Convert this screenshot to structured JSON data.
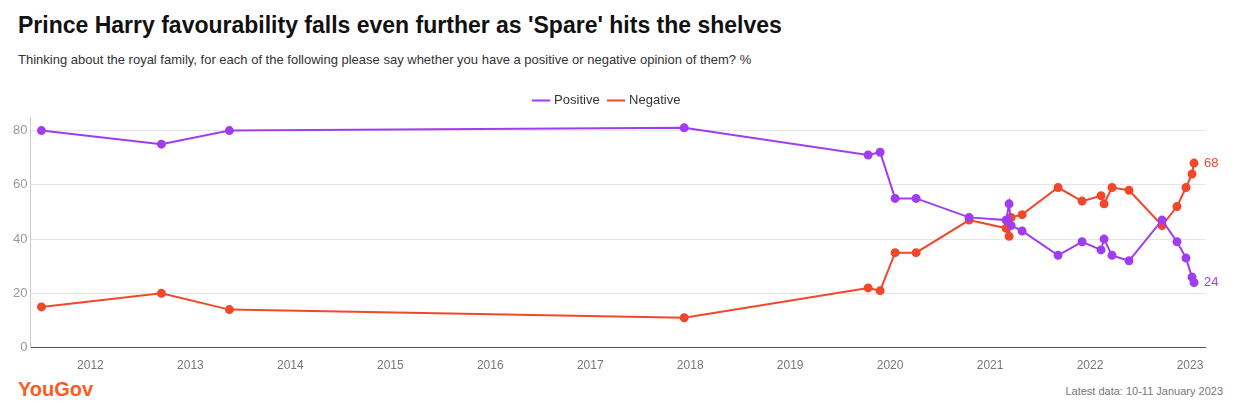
{
  "chart_data": {
    "type": "line",
    "title": "Prince Harry favourability falls even further as 'Spare' hits the shelves",
    "subtitle": "Thinking about the royal family, for each of the following please say whether you have a positive or negative opinion of them? %",
    "source": "YouGov",
    "note": "Latest data: 10-11 January 2023",
    "x": [
      2011.51,
      2012.71,
      2013.39,
      2017.94,
      2019.78,
      2019.9,
      2020.05,
      2020.26,
      2020.79,
      2021.16,
      2021.19,
      2021.21,
      2021.32,
      2021.68,
      2021.92,
      2022.11,
      2022.14,
      2022.22,
      2022.39,
      2022.72,
      2022.87,
      2022.96,
      2023.02,
      2023.04
    ],
    "series": [
      {
        "name": "Positive",
        "color": "#a13df0",
        "marker": "circle",
        "line_style": "solid",
        "values": [
          80,
          75,
          80,
          81,
          71,
          72,
          55,
          55,
          48,
          47,
          53,
          45,
          43,
          34,
          39,
          36,
          40,
          34,
          32,
          47,
          39,
          33,
          26,
          24
        ]
      },
      {
        "name": "Negative",
        "color": "#f2472a",
        "marker": "circle",
        "line_style": "solid",
        "values": [
          15,
          20,
          14,
          11,
          22,
          21,
          35,
          35,
          47,
          44,
          41,
          48,
          49,
          59,
          54,
          56,
          53,
          59,
          58,
          45,
          52,
          59,
          64,
          68
        ]
      }
    ],
    "annotations": [
      {
        "text": "68",
        "x": 2023.04,
        "y": 68,
        "color": "#f2472a"
      },
      {
        "text": "24",
        "x": 2023.04,
        "y": 24,
        "color": "#a13df0"
      }
    ],
    "xlim": [
      2011.4,
      2023.15
    ],
    "xticks": [
      2012,
      2013,
      2014,
      2015,
      2016,
      2017,
      2018,
      2019,
      2020,
      2021,
      2022,
      2023
    ],
    "ylim": [
      0,
      85
    ],
    "yticks": [
      0,
      20,
      40,
      60,
      80
    ],
    "grid": true,
    "legend": "top"
  }
}
